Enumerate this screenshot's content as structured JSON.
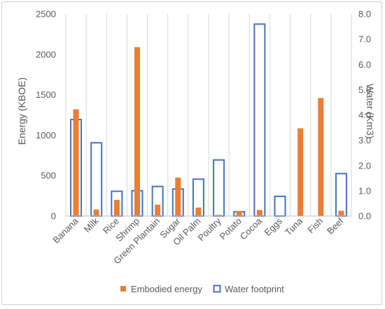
{
  "chart_data": {
    "type": "bar",
    "categories": [
      "Banana",
      "Milk",
      "Rice",
      "Shrimp",
      "Green Plantain",
      "Sugar",
      "Oil Palm",
      "Poultry",
      "Potato",
      "Cocoa",
      "Eggs",
      "Tuna",
      "Fish",
      "Beef"
    ],
    "series": [
      {
        "name": "Embodied energy",
        "axis": "left",
        "style": "filled",
        "color": "#ED7D31",
        "values": [
          1320,
          80,
          200,
          2090,
          140,
          475,
          105,
          15,
          60,
          75,
          0,
          1085,
          1460,
          65
        ]
      },
      {
        "name": "Water footprint",
        "axis": "right",
        "style": "outline",
        "color": "#4472C4",
        "values": [
          3.82,
          2.9,
          0.98,
          1.0,
          1.17,
          1.07,
          1.46,
          2.22,
          0.17,
          7.6,
          0.78,
          0,
          0,
          1.68
        ]
      }
    ],
    "ylabel": "Energy (KBOE)",
    "ylim": [
      0,
      2500
    ],
    "yticks": [
      "0",
      "500",
      "1000",
      "1500",
      "2000",
      "2500"
    ],
    "y2label": "Water (Km3)",
    "y2lim": [
      0,
      8
    ],
    "y2ticks": [
      "0.0",
      "1.0",
      "2.0",
      "3.0",
      "4.0",
      "5.0",
      "6.0",
      "7.0",
      "8.0"
    ],
    "grid": "vertical",
    "legend": "bottom"
  }
}
